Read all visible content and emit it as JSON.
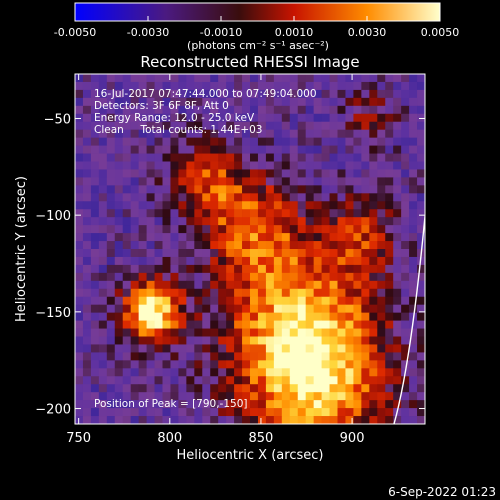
{
  "colorbar": {
    "ticks": [
      "-0.0050",
      "-0.0030",
      "-0.0010",
      "0.0010",
      "0.0030",
      "0.0050"
    ],
    "tick_values": [
      -0.005,
      -0.003,
      -0.001,
      0.001,
      0.003,
      0.005
    ],
    "range": [
      -0.005,
      0.005
    ],
    "unit_label": "(photons cm⁻² s⁻¹ asec⁻²)",
    "colors": [
      "#0000ff",
      "#4b1a80",
      "#3a0d0d",
      "#c81400",
      "#ff8c00",
      "#ffffcc"
    ]
  },
  "chart_data": {
    "type": "heatmap",
    "title": "Reconstructed RHESSI Image",
    "xlabel": "Heliocentric X (arcsec)",
    "ylabel": "Heliocentric Y (arcsec)",
    "xlim": [
      748,
      940
    ],
    "ylim": [
      -208,
      -27
    ],
    "x_ticks": [
      750,
      800,
      850,
      900
    ],
    "y_ticks": [
      -50,
      -100,
      -150,
      -200
    ],
    "x_tick_labels": [
      "750",
      "800",
      "850",
      "900"
    ],
    "y_tick_labels": [
      "−50",
      "−100",
      "−150",
      "−200"
    ],
    "annotations": [
      "16-Jul-2017 07:47:44.000 to 07:49:04.000",
      "Detectors: 3F 6F 8F, Att 0",
      "Energy Range: 12.0 - 25.0 keV",
      "Clean     Total counts: 1.44E+03"
    ],
    "peak_label": "Position of Peak = [790,-150]",
    "peak": [
      790,
      -150
    ]
  },
  "footer": {
    "timestamp": "6-Sep-2022 01:23"
  }
}
